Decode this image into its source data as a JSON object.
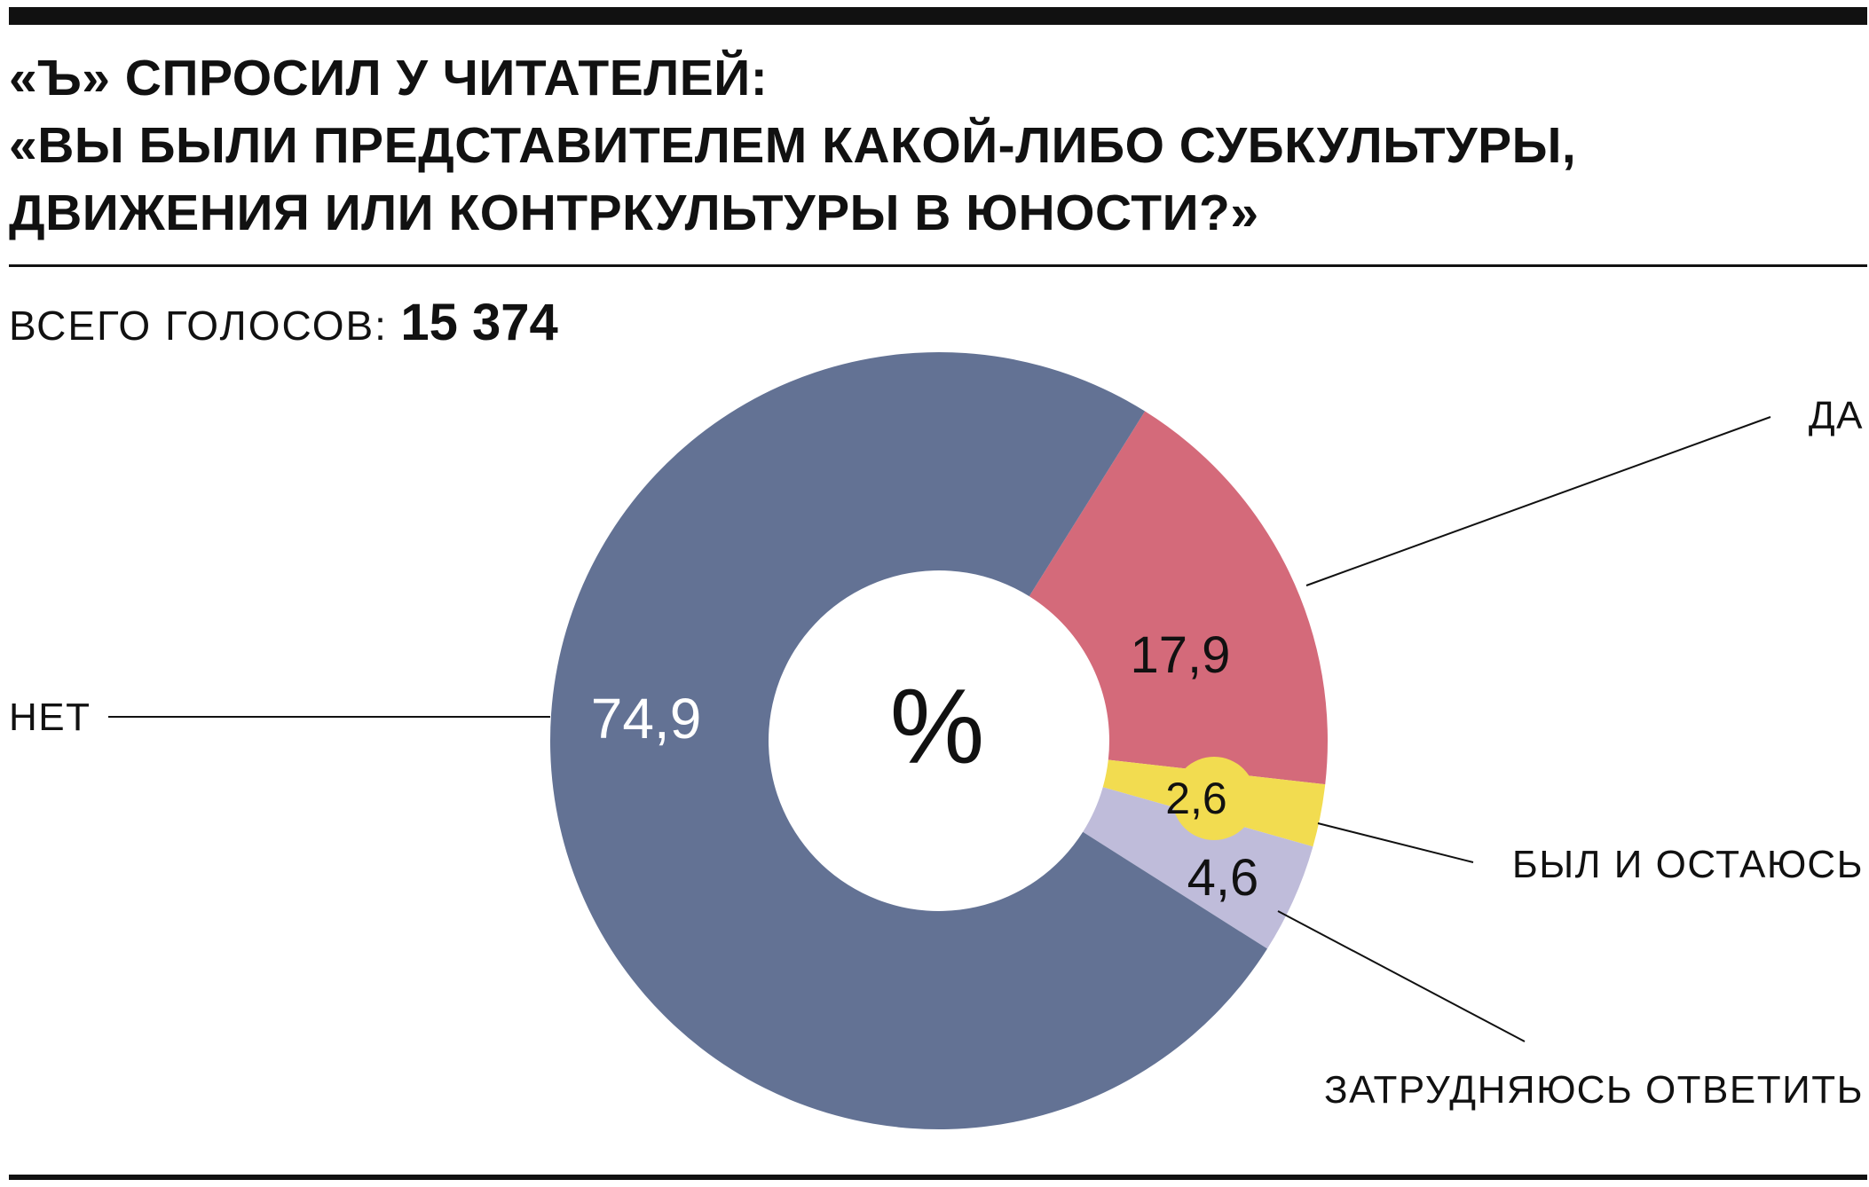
{
  "header": {
    "title_lines": [
      "«Ъ» СПРОСИЛ У ЧИТАТЕЛЕЙ:",
      "«ВЫ БЫЛИ ПРЕДСТАВИТЕЛЕМ КАКОЙ-ЛИБО СУБКУЛЬТУРЫ,",
      "ДВИЖЕНИЯ ИЛИ КОНТРКУЛЬТУРЫ В ЮНОСТИ?»"
    ],
    "total_label": "ВСЕГО ГОЛОСОВ:",
    "total_value": "15 374"
  },
  "chart_data": {
    "type": "pie",
    "variant": "donut",
    "unit_label": "%",
    "slices": [
      {
        "label": "ДА",
        "value": 17.9,
        "value_label": "17,9",
        "color": "#d46a7a",
        "label_color": "#111111"
      },
      {
        "label": "БЫЛ И ОСТАЮСЬ",
        "value": 2.6,
        "value_label": "2,6",
        "color": "#f2dc50",
        "label_color": "#111111"
      },
      {
        "label": "ЗАТРУДНЯЮСЬ ОТВЕТИТЬ",
        "value": 4.6,
        "value_label": "4,6",
        "color": "#bfbcda",
        "label_color": "#111111"
      },
      {
        "label": "НЕТ",
        "value": 74.9,
        "value_label": "74,9",
        "color": "#637294",
        "label_color": "#ffffff"
      }
    ]
  }
}
